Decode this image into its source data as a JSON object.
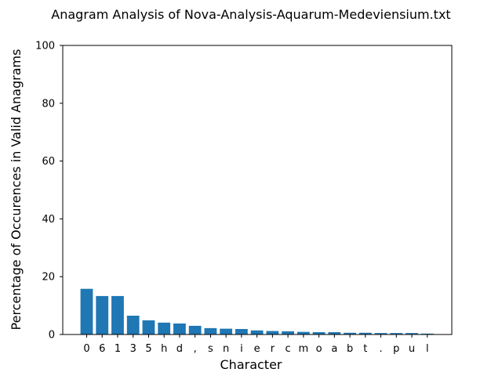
{
  "chart_data": {
    "type": "bar",
    "title": "Anagram Analysis of Nova-Analysis-Aquarum-Medeviensium.txt",
    "xlabel": "Character",
    "ylabel": "Percentage of Occurences in Valid Anagrams",
    "categories": [
      "0",
      "6",
      "1",
      "3",
      "5",
      "h",
      "d",
      ",",
      "s",
      "n",
      "i",
      "e",
      "r",
      "c",
      "m",
      "o",
      "a",
      "b",
      "t",
      ".",
      "p",
      "u",
      "l"
    ],
    "values": [
      15.8,
      13.3,
      13.3,
      6.5,
      4.9,
      4.1,
      3.8,
      3.0,
      2.2,
      2.0,
      1.9,
      1.4,
      1.2,
      1.1,
      0.9,
      0.8,
      0.8,
      0.6,
      0.6,
      0.5,
      0.5,
      0.5,
      0.3
    ],
    "ylim": [
      0,
      100
    ],
    "yticks": [
      0,
      20,
      40,
      60,
      80,
      100
    ],
    "bar_color": "#1f77b4",
    "grid": false,
    "legend": "none"
  }
}
